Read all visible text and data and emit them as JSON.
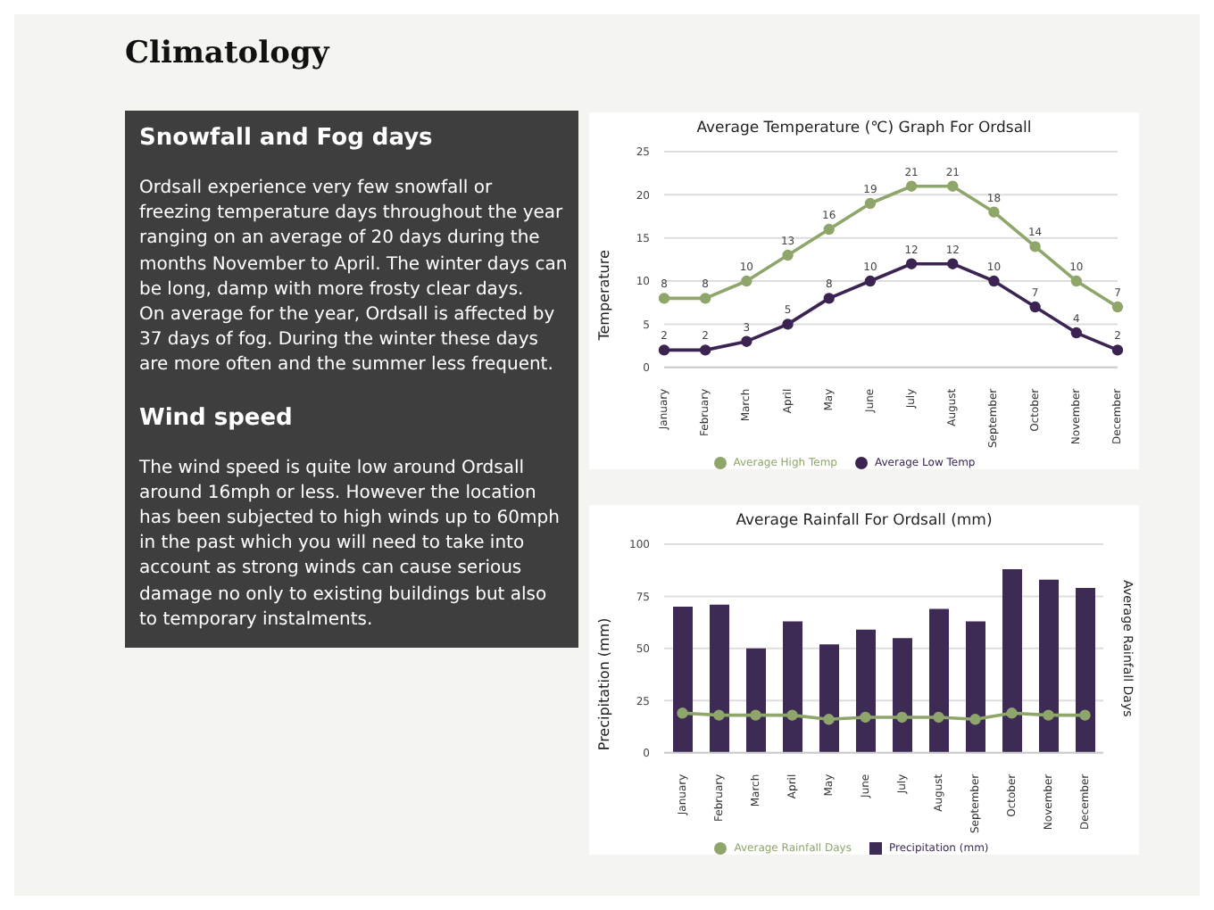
{
  "chart_data": [
    {
      "type": "other",
      "title": "Climatology",
      "annotations": [
        "Snowfall and Fog days",
        "Ordsall experience very few snowfall or freezing temperature days throughout the year ranging on an average of 20 days during the months November to April.  The winter days can be long, damp with more frosty clear days.\nOn average for the year, Ordsall is affected by 37 days of fog.  During the winter these days are more often and the summer less frequent.",
        "Wind speed",
        "The wind speed is quite low around Ordsall around 16mph or less.  However the location has been subjected to high winds up to 60mph in the past which you will need to take into account as strong winds can cause serious damage no only to existing buildings but also to temporary instalments."
      ]
    },
    {
      "type": "line",
      "title": "Average Temperature (℃) Graph For Ordsall",
      "ylabel": "Temperature",
      "categories": [
        "January",
        "February",
        "March",
        "April",
        "May",
        "June",
        "July",
        "August",
        "September",
        "October",
        "November",
        "December"
      ],
      "series": [
        {
          "name": "Average High Temp",
          "color": "#8fa66b",
          "values": [
            8,
            8,
            10,
            13,
            16,
            19,
            21,
            21,
            18,
            14,
            10,
            7
          ]
        },
        {
          "name": "Average Low Temp",
          "color": "#3b2352",
          "values": [
            2,
            2,
            3,
            5,
            8,
            10,
            12,
            12,
            10,
            7,
            4,
            2
          ]
        }
      ],
      "ylim": [
        0,
        25
      ],
      "yticks": [
        0,
        5,
        10,
        15,
        20,
        25
      ],
      "grid": "y",
      "legend": "bottom",
      "marker": "circle",
      "data_labels": true
    },
    {
      "type": "bar",
      "title": "Average Rainfall For Ordsall (mm)",
      "ylabel": "Precipitation (mm)",
      "y2label": "Average Rainfall Days",
      "categories": [
        "January",
        "February",
        "March",
        "April",
        "May",
        "June",
        "July",
        "August",
        "September",
        "October",
        "November",
        "December"
      ],
      "series": [
        {
          "name": "Precipitation (mm)",
          "color": "#3d2a55",
          "values": [
            70,
            71,
            50,
            63,
            52,
            59,
            55,
            69,
            63,
            88,
            83,
            79
          ]
        },
        {
          "name": "Average Rainfall Days",
          "type": "line",
          "color": "#8fa66b",
          "values": [
            19,
            18,
            18,
            18,
            16,
            17,
            17,
            17,
            16,
            19,
            18,
            18
          ]
        }
      ],
      "ylim": [
        0,
        100
      ],
      "yticks": [
        0,
        25,
        50,
        75,
        100
      ],
      "grid": "y",
      "legend": "bottom",
      "marker": "circle"
    }
  ]
}
